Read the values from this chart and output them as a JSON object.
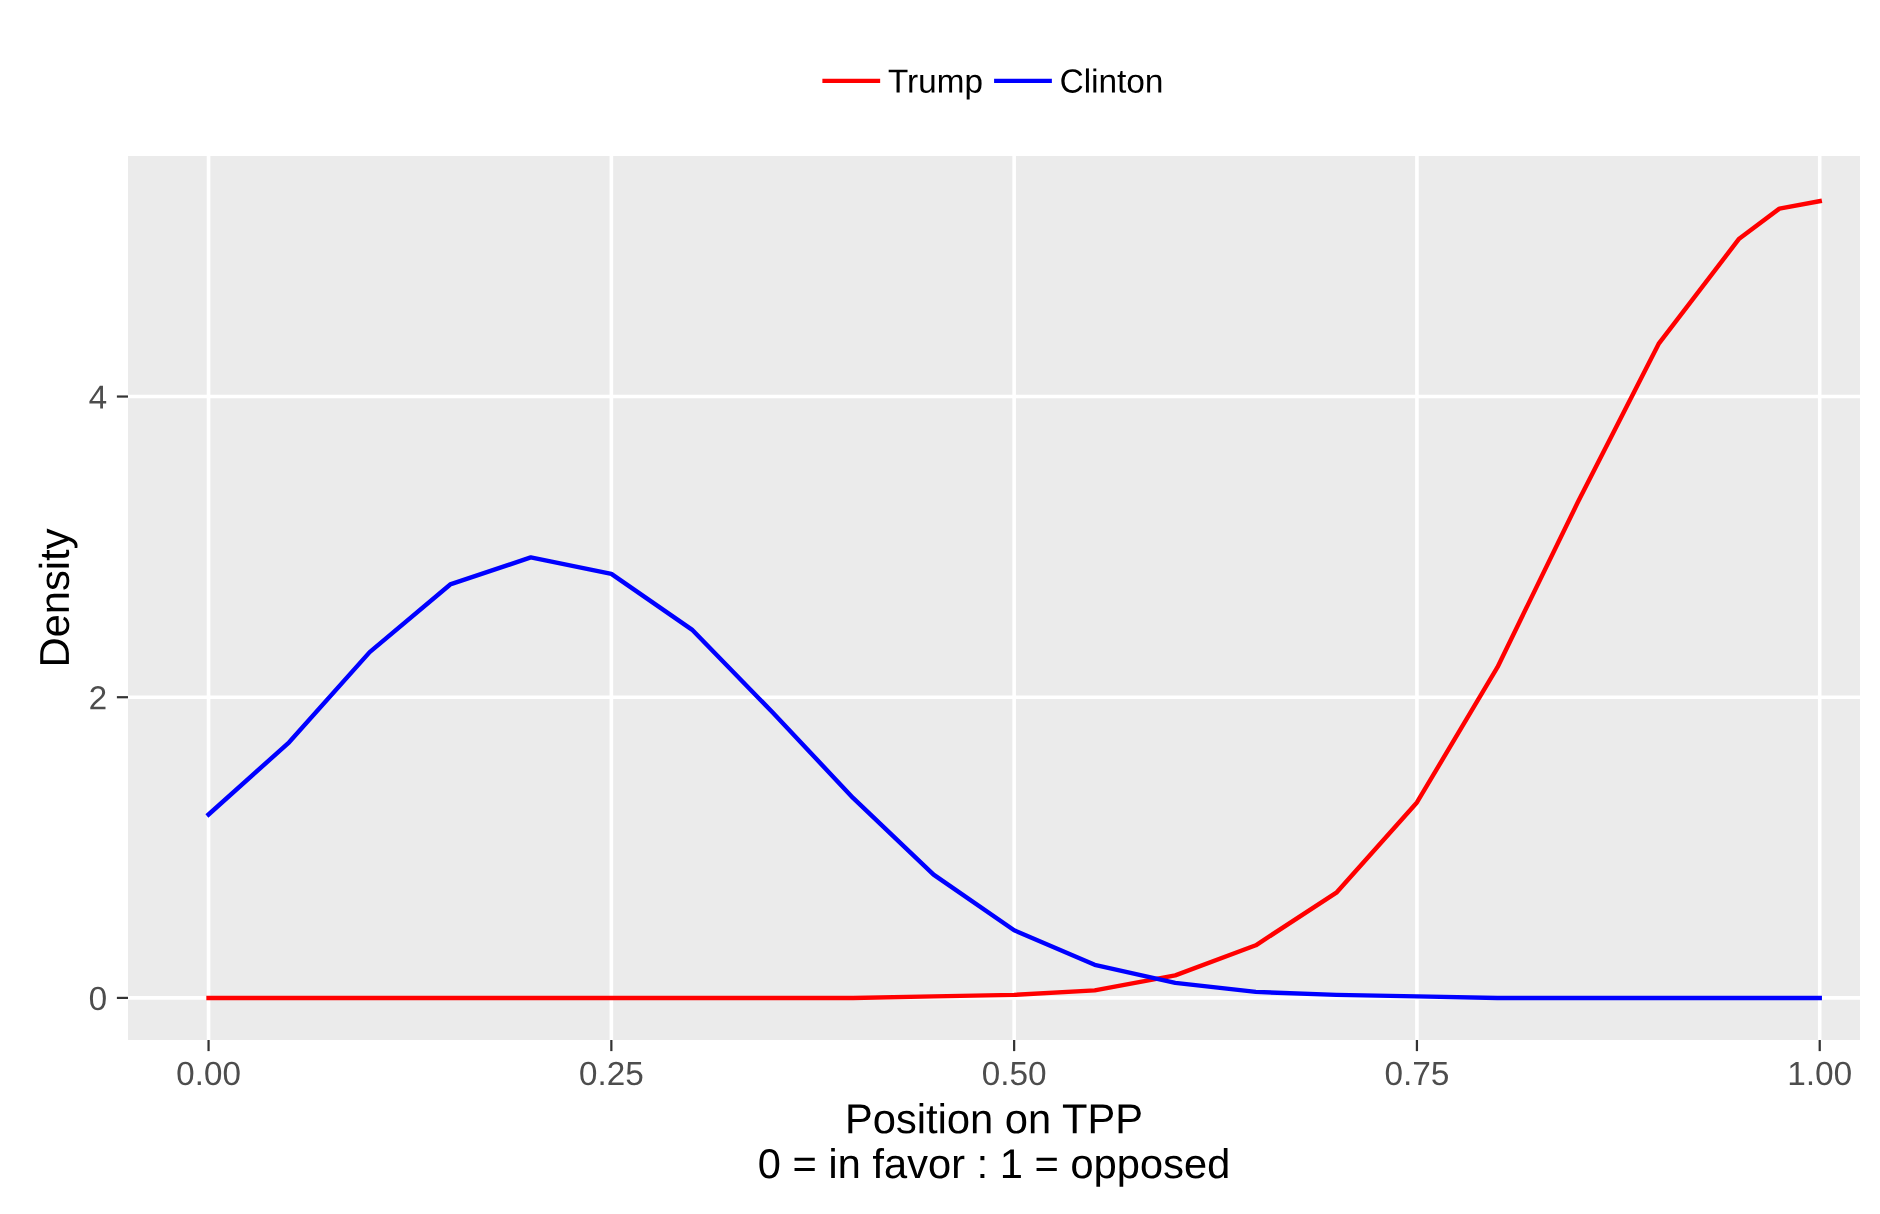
{
  "chart_data": {
    "type": "line",
    "xlabel": "Position on TPP\n0 = in favor : 1 = opposed",
    "ylabel": "Density",
    "xlim": [
      -0.05,
      1.025
    ],
    "ylim": [
      -0.28,
      5.6
    ],
    "xticks": [
      {
        "value": 0,
        "label": "0.00"
      },
      {
        "value": 0.25,
        "label": "0.25"
      },
      {
        "value": 0.5,
        "label": "0.50"
      },
      {
        "value": 0.75,
        "label": "0.75"
      },
      {
        "value": 1,
        "label": "1.00"
      }
    ],
    "yticks": [
      0,
      2,
      4
    ],
    "grid": true,
    "legend": "top",
    "marker": "none",
    "line_style": "solid",
    "x": [
      0,
      0.05,
      0.1,
      0.15,
      0.2,
      0.25,
      0.3,
      0.35,
      0.4,
      0.45,
      0.5,
      0.55,
      0.6,
      0.65,
      0.7,
      0.75,
      0.8,
      0.85,
      0.9,
      0.95,
      0.975,
      1.0
    ],
    "series": [
      {
        "name": "Trump",
        "color": "#ff0000",
        "values": [
          0,
          0,
          0,
          0,
          0,
          0,
          0,
          0,
          0,
          0.01,
          0.02,
          0.05,
          0.15,
          0.35,
          0.7,
          1.3,
          2.2,
          3.3,
          4.35,
          5.05,
          5.25,
          5.3
        ]
      },
      {
        "name": "Clinton",
        "color": "#0000ff",
        "values": [
          1.22,
          1.7,
          2.3,
          2.75,
          2.93,
          2.82,
          2.45,
          1.9,
          1.33,
          0.82,
          0.45,
          0.22,
          0.1,
          0.04,
          0.02,
          0.01,
          0,
          0,
          0,
          0,
          0,
          0
        ]
      }
    ]
  }
}
